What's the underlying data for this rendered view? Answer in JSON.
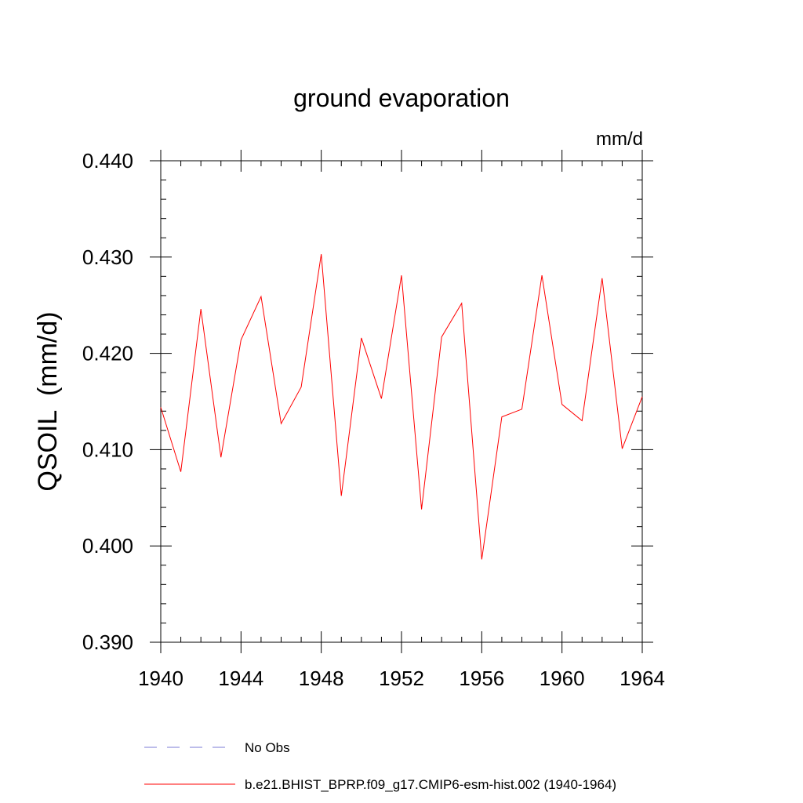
{
  "chart_data": {
    "type": "line",
    "title": "ground evaporation",
    "units_label": "mm/d",
    "ylabel": "QSOIL  (mm/d)",
    "xlabel": "",
    "xlim": [
      1940,
      1964
    ],
    "ylim": [
      0.39,
      0.44
    ],
    "x_ticks": [
      "1940",
      "1944",
      "1948",
      "1952",
      "1956",
      "1960",
      "1964"
    ],
    "y_ticks": [
      "0.390",
      "0.400",
      "0.410",
      "0.420",
      "0.430",
      "0.440"
    ],
    "x": [
      1940,
      1941,
      1942,
      1943,
      1944,
      1945,
      1946,
      1947,
      1948,
      1949,
      1950,
      1951,
      1952,
      1953,
      1954,
      1955,
      1956,
      1957,
      1958,
      1959,
      1960,
      1961,
      1962,
      1963,
      1964
    ],
    "series": [
      {
        "name": "b.e21.BHIST_BPRP.f09_g17.CMIP6-esm-hist.002 (1940-1964)",
        "color": "#ff0000",
        "values": [
          0.4144,
          0.4077,
          0.4246,
          0.4092,
          0.4214,
          0.4259,
          0.4127,
          0.4165,
          0.4303,
          0.4052,
          0.4216,
          0.4153,
          0.4281,
          0.4038,
          0.4217,
          0.4252,
          0.3986,
          0.4134,
          0.4142,
          0.4281,
          0.4147,
          0.413,
          0.4278,
          0.4101,
          0.4155
        ]
      }
    ],
    "legend": [
      {
        "label": "No Obs",
        "style": "dashed",
        "color": "#7b7bd6"
      },
      {
        "label": "b.e21.BHIST_BPRP.f09_g17.CMIP6-esm-hist.002 (1940-1964)",
        "style": "solid",
        "color": "#ff0000"
      }
    ]
  }
}
